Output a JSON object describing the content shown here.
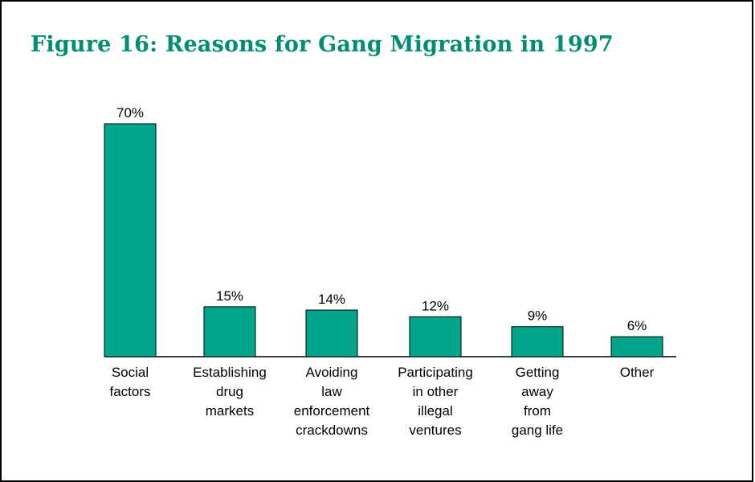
{
  "colors": {
    "title": "#008e72",
    "bar": "#00a58a",
    "bar_stroke": "#000000"
  },
  "chart_data": {
    "type": "bar",
    "title": "Figure 16:  Reasons for Gang Migration in 1997",
    "categories": [
      [
        "Social",
        "factors"
      ],
      [
        "Establishing",
        "drug",
        "markets"
      ],
      [
        "Avoiding",
        "law",
        "enforcement",
        "crackdowns"
      ],
      [
        "Participating",
        "in other",
        "illegal",
        "ventures"
      ],
      [
        "Getting",
        "away",
        "from",
        "gang life"
      ],
      [
        "Other"
      ]
    ],
    "values": [
      70,
      15,
      14,
      12,
      9,
      6
    ],
    "value_labels": [
      "70%",
      "15%",
      "14%",
      "12%",
      "9%",
      "6%"
    ],
    "ylim": [
      0,
      70
    ],
    "xlabel": "",
    "ylabel": "",
    "grid": false,
    "legend": "none"
  }
}
